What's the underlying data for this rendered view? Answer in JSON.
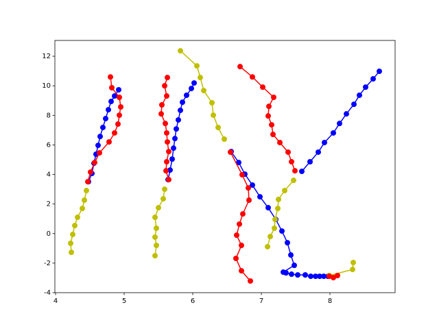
{
  "chart_data": {
    "type": "line",
    "xlim": [
      3.99,
      8.95
    ],
    "ylim": [
      -4,
      13.07
    ],
    "xticks": [
      4,
      5,
      6,
      7,
      8
    ],
    "yticks": [
      -4,
      -2,
      0,
      2,
      4,
      6,
      8,
      10,
      12
    ],
    "series": [
      {
        "color": "#0000ff",
        "x": [
          4.48,
          4.53,
          4.56,
          4.59,
          4.62,
          4.65,
          4.69,
          4.73,
          4.77,
          4.81,
          4.86,
          4.92
        ],
        "values": [
          3.51,
          4.07,
          4.76,
          5.37,
          5.97,
          6.57,
          7.18,
          7.78,
          8.38,
          8.94,
          9.31,
          9.73
        ]
      },
      {
        "color": "#ff0000",
        "x": [
          4.8,
          4.82,
          4.93,
          4.95,
          4.93,
          4.91,
          4.86,
          4.78,
          4.64,
          4.57,
          4.51,
          4.47
        ],
        "values": [
          10.6,
          9.87,
          9.22,
          8.57,
          8.01,
          7.41,
          6.81,
          6.2,
          5.46,
          4.81,
          4.16,
          3.51
        ]
      },
      {
        "color": "#bfbf00",
        "x": [
          4.45,
          4.42,
          4.39,
          4.32,
          4.28,
          4.25,
          4.22,
          4.23
        ],
        "values": [
          2.91,
          2.26,
          1.7,
          1.1,
          0.54,
          -0.06,
          -0.66,
          -1.27
        ]
      },
      {
        "color": "#0000ff",
        "x": [
          5.64,
          5.67,
          5.7,
          5.72,
          5.74,
          5.76,
          5.79,
          5.82,
          5.85,
          5.91,
          5.98,
          6.02
        ],
        "values": [
          3.65,
          4.3,
          5.04,
          5.78,
          6.43,
          7.08,
          7.69,
          8.34,
          8.89,
          9.36,
          9.82,
          10.19
        ]
      },
      {
        "color": "#ff0000",
        "x": [
          5.63,
          5.59,
          5.62,
          5.55,
          5.54,
          5.6,
          5.62,
          5.63,
          5.65,
          5.62,
          5.61,
          5.65
        ],
        "values": [
          10.56,
          10.0,
          9.31,
          8.71,
          8.1,
          7.45,
          6.81,
          6.2,
          5.55,
          4.86,
          4.25,
          3.65
        ]
      },
      {
        "color": "#bfbf00",
        "x": [
          5.59,
          5.57,
          5.5,
          5.45,
          5.47,
          5.45,
          5.47,
          5.45
        ],
        "values": [
          3.0,
          2.35,
          1.75,
          1.1,
          0.36,
          -0.24,
          -0.8,
          -1.5
        ]
      },
      {
        "color": "#bfbf00",
        "x": [
          5.82,
          6.06,
          6.11,
          6.16,
          6.28,
          6.3,
          6.37,
          6.46
        ],
        "values": [
          12.37,
          11.35,
          10.56,
          9.68,
          8.85,
          8.01,
          7.18,
          6.39
        ]
      },
      {
        "color": "#0000ff",
        "x": [
          6.56,
          6.67,
          6.76,
          6.87,
          6.98,
          7.1,
          7.21,
          7.3,
          7.38,
          7.43,
          7.48,
          7.32,
          7.36,
          7.44,
          7.53,
          7.64,
          7.72,
          7.79,
          7.85,
          7.91,
          7.97
        ],
        "values": [
          5.55,
          4.81,
          4.02,
          3.28,
          2.49,
          1.75,
          0.96,
          0.17,
          -0.62,
          -1.45,
          -2.15,
          -2.61,
          -2.66,
          -2.75,
          -2.8,
          -2.8,
          -2.89,
          -2.89,
          -2.89,
          -2.89,
          -2.89
        ]
      },
      {
        "color": "#0000ff",
        "x": [
          7.59,
          7.71,
          7.83,
          7.92,
          8.05,
          8.14,
          8.24,
          8.35,
          8.43,
          8.52,
          8.63,
          8.72
        ],
        "values": [
          4.21,
          4.86,
          5.51,
          6.16,
          6.81,
          7.45,
          8.1,
          8.75,
          9.36,
          9.91,
          10.47,
          10.98
        ]
      },
      {
        "color": "#ff0000",
        "x": [
          6.69,
          6.87,
          7.02,
          7.18,
          7.11,
          7.1,
          7.15,
          7.17,
          7.27,
          7.39,
          7.44,
          7.49
        ],
        "values": [
          11.3,
          10.6,
          9.91,
          9.22,
          8.61,
          7.96,
          7.36,
          6.71,
          6.16,
          5.51,
          4.86,
          4.25
        ]
      },
      {
        "color": "#ff0000",
        "x": [
          6.55,
          6.72,
          6.81,
          6.82,
          6.73,
          6.68,
          6.64,
          6.71,
          6.63,
          6.71,
          6.84
        ],
        "values": [
          5.51,
          3.98,
          3.09,
          2.26,
          1.33,
          0.64,
          -0.11,
          -0.8,
          -1.68,
          -2.52,
          -3.21
        ]
      },
      {
        "color": "#bfbf00",
        "x": [
          7.09,
          7.13,
          7.19,
          7.2,
          7.24,
          7.25,
          7.34,
          7.47
        ],
        "values": [
          -0.89,
          -0.2,
          0.36,
          0.96,
          1.7,
          2.31,
          2.91,
          3.6
        ]
      },
      {
        "color": "#bfbf00",
        "x": [
          8.34,
          8.33,
          7.99
        ],
        "values": [
          -1.96,
          -2.43,
          -2.84
        ]
      },
      {
        "color": "#ff0000",
        "x": [
          7.99,
          8.05,
          8.11
        ],
        "values": [
          -2.89,
          -2.98,
          -2.84
        ]
      }
    ]
  }
}
